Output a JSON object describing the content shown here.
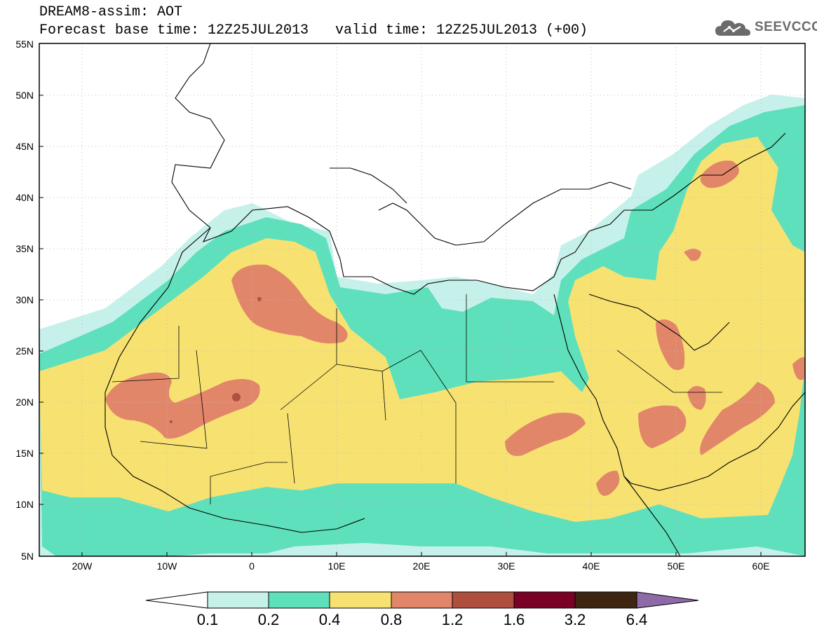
{
  "header": {
    "title": "DREAM8-assim: AOT",
    "forecast_base": "Forecast base time: 12Z25JUL2013",
    "valid_time": "valid time: 12Z25JUL2013 (+00)"
  },
  "logo": {
    "text": "SEEVCCC",
    "icon": "cloud-icon"
  },
  "map": {
    "lat_labels": [
      "55N",
      "50N",
      "45N",
      "40N",
      "35N",
      "30N",
      "25N",
      "20N",
      "15N",
      "10N",
      "5N"
    ],
    "lon_labels": [
      "20W",
      "10W",
      "0",
      "10E",
      "20E",
      "30E",
      "40E",
      "50E",
      "60E"
    ],
    "extent": {
      "lon_min": -25,
      "lon_max": 65,
      "lat_min": 5,
      "lat_max": 55
    },
    "grid": true
  },
  "colorbar": {
    "levels": [
      "0.1",
      "0.2",
      "0.4",
      "0.8",
      "1.2",
      "1.6",
      "3.2",
      "6.4"
    ],
    "colors": [
      "#ffffff",
      "#c6f1ea",
      "#5ee0bd",
      "#f7e271",
      "#e2866a",
      "#b14f3e",
      "#7a0026",
      "#3d2512",
      "#8e6aa8"
    ]
  }
}
